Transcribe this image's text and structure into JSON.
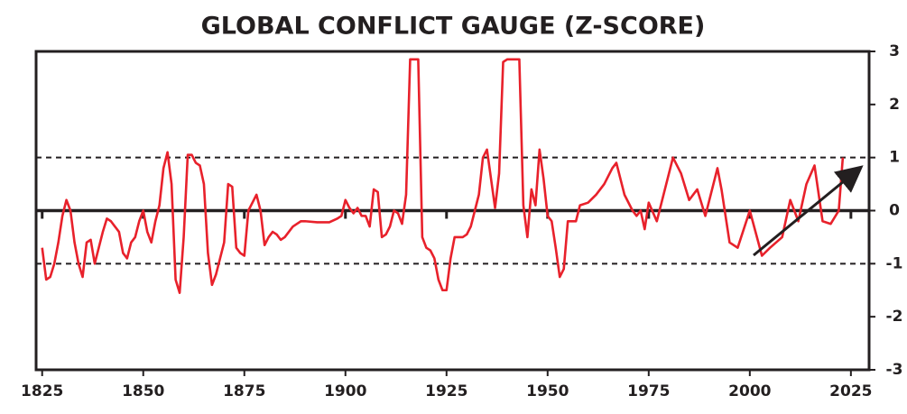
{
  "chart_data": {
    "type": "line",
    "title": "GLOBAL CONFLICT GAUGE (Z-SCORE)",
    "x": [
      1825,
      1826,
      1827,
      1828,
      1829,
      1830,
      1831,
      1832,
      1833,
      1834,
      1835,
      1836,
      1837,
      1838,
      1839,
      1840,
      1841,
      1842,
      1843,
      1844,
      1845,
      1846,
      1847,
      1848,
      1849,
      1850,
      1851,
      1852,
      1853,
      1854,
      1855,
      1856,
      1857,
      1858,
      1859,
      1860,
      1861,
      1862,
      1863,
      1864,
      1865,
      1866,
      1867,
      1868,
      1869,
      1870,
      1871,
      1872,
      1873,
      1874,
      1875,
      1876,
      1877,
      1878,
      1879,
      1880,
      1881,
      1882,
      1883,
      1884,
      1885,
      1886,
      1887,
      1888,
      1889,
      1890,
      1893,
      1896,
      1898,
      1899,
      1900,
      1901,
      1902,
      1903,
      1904,
      1905,
      1906,
      1907,
      1908,
      1909,
      1910,
      1911,
      1912,
      1913,
      1914,
      1915,
      1916,
      1918,
      1919,
      1920,
      1921,
      1922,
      1923,
      1924,
      1925,
      1926,
      1927,
      1929,
      1930,
      1931,
      1932,
      1933,
      1934,
      1935,
      1936,
      1937,
      1938,
      1939,
      1940,
      1943,
      1944,
      1945,
      1946,
      1947,
      1948,
      1949,
      1950,
      1951,
      1952,
      1953,
      1954,
      1955,
      1957,
      1958,
      1960,
      1962,
      1964,
      1966,
      1967,
      1969,
      1971,
      1972,
      1973,
      1974,
      1975,
      1977,
      1981,
      1983,
      1985,
      1987,
      1989,
      1992,
      1993,
      1995,
      1997,
      2000,
      2003,
      2005,
      2008,
      2010,
      2012,
      2014,
      2016,
      2018,
      2020,
      2022,
      2023
    ],
    "series": [
      {
        "color": "#e8212b",
        "values": [
          -0.7,
          -1.3,
          -1.25,
          -1.0,
          -0.6,
          -0.1,
          0.2,
          0.0,
          -0.6,
          -1.0,
          -1.25,
          -0.6,
          -0.55,
          -1.0,
          -0.7,
          -0.4,
          -0.15,
          -0.2,
          -0.3,
          -0.4,
          -0.8,
          -0.9,
          -0.6,
          -0.5,
          -0.2,
          0.0,
          -0.4,
          -0.6,
          -0.2,
          0.1,
          0.8,
          1.1,
          0.5,
          -1.3,
          -1.55,
          -0.5,
          1.05,
          1.05,
          0.9,
          0.85,
          0.5,
          -0.8,
          -1.4,
          -1.2,
          -0.9,
          -0.6,
          0.5,
          0.45,
          -0.7,
          -0.8,
          -0.85,
          0.0,
          0.15,
          0.3,
          0.0,
          -0.65,
          -0.5,
          -0.4,
          -0.45,
          -0.55,
          -0.5,
          -0.4,
          -0.3,
          -0.25,
          -0.2,
          -0.2,
          -0.22,
          -0.22,
          -0.15,
          -0.1,
          0.2,
          0.05,
          -0.05,
          0.05,
          -0.1,
          -0.1,
          -0.3,
          0.4,
          0.35,
          -0.5,
          -0.45,
          -0.3,
          0.0,
          -0.05,
          -0.25,
          0.3,
          2.85,
          2.85,
          -0.5,
          -0.7,
          -0.75,
          -0.9,
          -1.3,
          -1.5,
          -1.5,
          -0.9,
          -0.5,
          -0.5,
          -0.45,
          -0.3,
          0.0,
          0.3,
          1.0,
          1.15,
          0.6,
          0.05,
          0.7,
          2.8,
          2.85,
          2.85,
          0.1,
          -0.5,
          0.4,
          0.1,
          1.15,
          0.6,
          -0.1,
          -0.2,
          -0.7,
          -1.25,
          -1.1,
          -0.2,
          -0.2,
          0.1,
          0.15,
          0.3,
          0.5,
          0.8,
          0.9,
          0.3,
          0.0,
          -0.1,
          0.0,
          -0.35,
          0.15,
          -0.2,
          1.0,
          0.7,
          0.2,
          0.4,
          -0.1,
          0.8,
          0.4,
          -0.6,
          -0.7,
          0.0,
          -0.85,
          -0.7,
          -0.5,
          0.2,
          -0.2,
          0.5,
          0.85,
          -0.2,
          -0.25,
          0.0,
          1.0
        ]
      }
    ],
    "xlim": [
      1823.5,
      2029.5
    ],
    "xticks": [
      1825,
      1850,
      1875,
      1900,
      1925,
      1950,
      1975,
      2000,
      2025
    ],
    "ylim": [
      -3,
      3
    ],
    "yticks": [
      -3,
      -2,
      -1,
      0,
      1,
      2,
      3
    ],
    "hlines": [
      {
        "value": 1,
        "style": "dashed"
      },
      {
        "value": -1,
        "style": "dashed"
      },
      {
        "value": 0,
        "style": "solid"
      }
    ]
  }
}
